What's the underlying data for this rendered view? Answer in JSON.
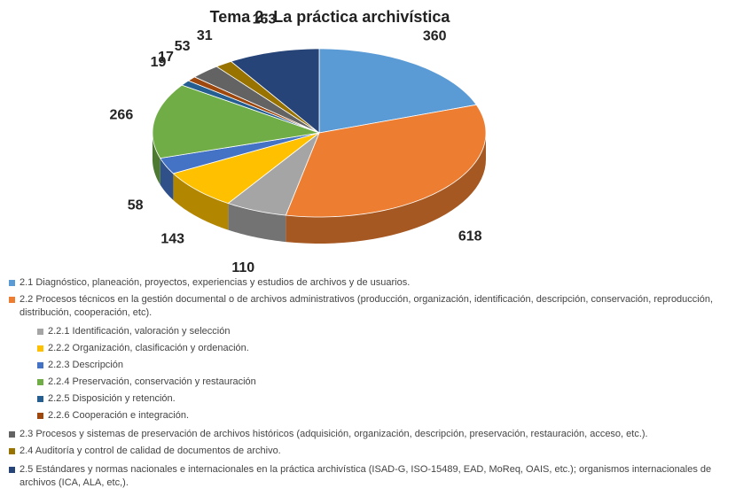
{
  "chart_data": {
    "type": "pie",
    "title": "Tema 2: La práctica archivística",
    "categories": [
      "2.1 Diagnóstico, planeación, proyectos, experiencias y estudios de archivos y de usuarios.",
      "2.2 Procesos técnicos en la gestión documental o de archivos administrativos (producción, organización, identificación, descripción, conservación, reproducción, distribución, cooperación, etc).",
      "2.2.1 Identificación, valoración y selección",
      "2.2.2 Organización, clasificación y ordenación.",
      "2.2.3 Descripción",
      "2.2.4 Preservación, conservación y restauración",
      "2.2.5 Disposición y retención.",
      "2.2.6 Cooperación e integración.",
      "2.3 Procesos y sistemas de preservación de archivos históricos (adquisición, organización, descripción, preservación, restauración, acceso, etc.).",
      "2.4 Auditoría y control de calidad de documentos de archivo.",
      "2.5 Estándares y normas nacionales e internacionales en la práctica archivística (ISAD-G, ISO-15489, EAD, MoReq, OAIS, etc.); organismos internacionales de archivos (ICA, ALA, etc,)."
    ],
    "values": [
      360,
      618,
      110,
      143,
      58,
      266,
      19,
      17,
      53,
      31,
      163
    ],
    "colors": [
      "#5b9bd5",
      "#ed7d31",
      "#a5a5a5",
      "#ffc000",
      "#4472c4",
      "#70ad47",
      "#255e91",
      "#9e480e",
      "#636363",
      "#997300",
      "#264478"
    ]
  }
}
